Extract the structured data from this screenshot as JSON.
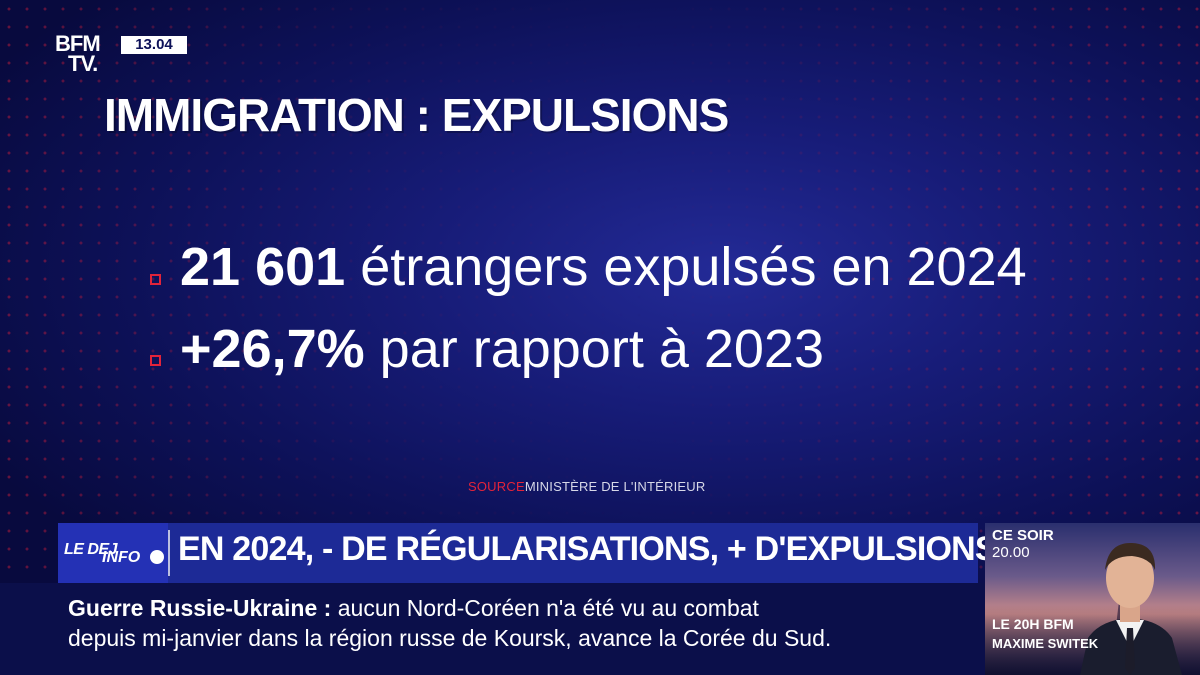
{
  "channel": {
    "logo_line1": "BFM",
    "logo_line2": "TV.",
    "time": "13.04"
  },
  "graphic": {
    "title": "IMMIGRATION : EXPULSIONS",
    "stat1_value": "21 601",
    "stat1_text": "étrangers expulsés en 2024",
    "stat2_value": "+26,7%",
    "stat2_text": "par rapport à 2023",
    "source_label": "SOURCE",
    "source_text": "MINISTÈRE DE L'INTÉRIEUR"
  },
  "lower_third": {
    "show_badge_line1": "LE DEJ",
    "show_badge_line2": "INFO",
    "headline": "EN 2024, - DE RÉGULARISATIONS, + D'EXPULSIONS"
  },
  "ticker": {
    "topic": "Guerre Russie-Ukraine",
    "separator": " : ",
    "line1_text": "aucun Nord-Coréen n'a été vu au combat",
    "line2_text": "depuis mi-janvier dans la région russe de Koursk, avance la Corée du Sud."
  },
  "promo": {
    "label": "CE SOIR",
    "time": "20.00",
    "show": "LE 20H BFM",
    "presenter": "MAXIME SWITEK"
  },
  "colors": {
    "accent_red": "#e2233a",
    "band_blue": "#1d2a96",
    "background": "#0a0d4a"
  }
}
